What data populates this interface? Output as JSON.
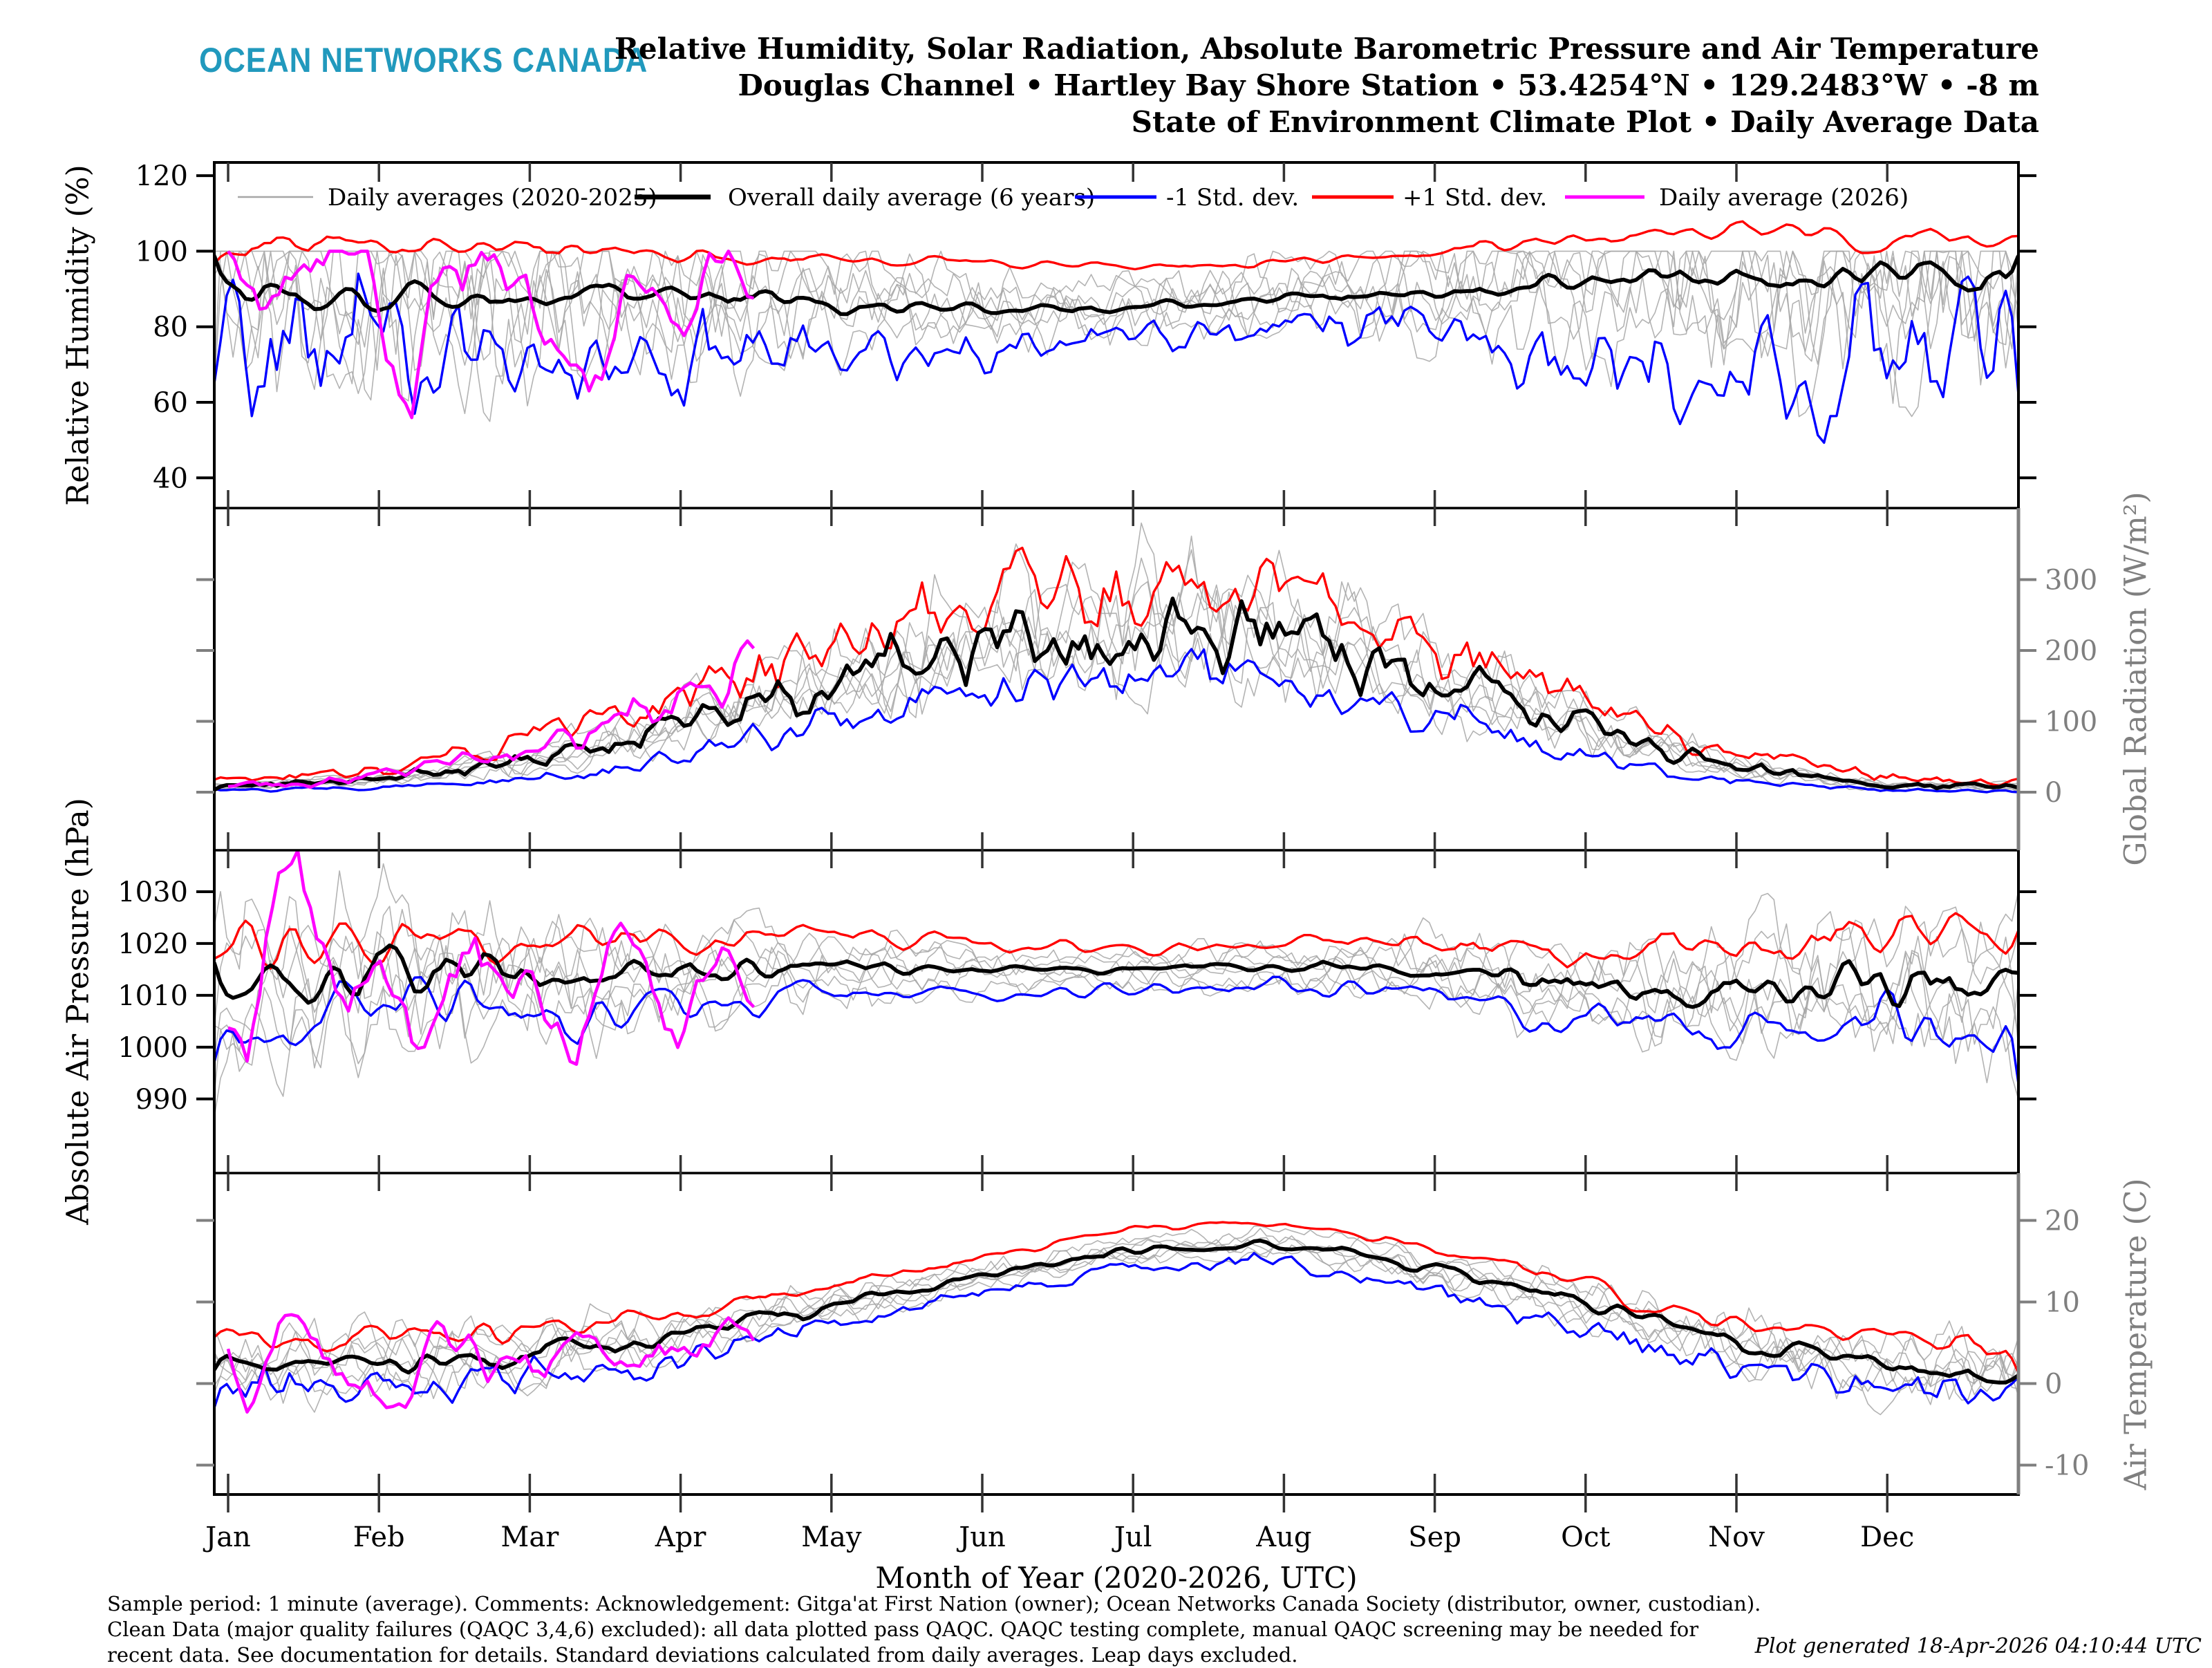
{
  "header": {
    "logo": "OCEAN NETWORKS CANADA",
    "logo_color": "#2199BD",
    "title_lines": [
      "Relative Humidity, Solar Radiation, Absolute Barometric Pressure and Air Temperature",
      "Douglas Channel • Hartley Bay Shore Station • 53.4254°N • 129.2483°W • -8 m",
      "State of Environment Climate Plot • Daily Average Data"
    ]
  },
  "legend": {
    "position": "top",
    "entries": [
      {
        "label": "Daily averages (2020-2025)",
        "color": "#a6a6a6",
        "thick": 2.5
      },
      {
        "label": "Overall daily average (6 years)",
        "color": "#000000",
        "thick": 7
      },
      {
        "label": "-1 Std. dev.",
        "color": "#0000ff",
        "thick": 5
      },
      {
        "label": "+1 Std. dev.",
        "color": "#ff0000",
        "thick": 5
      },
      {
        "label": "Daily average (2026)",
        "color": "#ff00ff",
        "thick": 5
      }
    ]
  },
  "x_axis": {
    "label": "Month of Year (2020-2026, UTC)",
    "months": [
      "Jan",
      "Feb",
      "Mar",
      "Apr",
      "May",
      "Jun",
      "Jul",
      "Aug",
      "Sep",
      "Oct",
      "Nov",
      "Dec"
    ]
  },
  "footer": {
    "notes": "Sample period: 1 minute (average). Comments: Acknowledgement: Gitga'at First Nation (owner); Ocean Networks Canada Society (distributor, owner, custodian). Clean Data (major quality failures (QAQC 3,4,6) excluded): all data plotted pass QAQC. QAQC testing complete, manual QAQC screening may be needed for recent data. See documentation for details. Standard deviations calculated from daily averages. Leap days excluded.",
    "generated": "Plot generated 18-Apr-2026 04:10:44 UTC"
  },
  "chart_data": [
    {
      "type": "line",
      "title": "Relative Humidity",
      "ylabel": "Relative Humidity (%)",
      "axis_side": "left",
      "axis_color": "#000000",
      "ylim": [
        32,
        123.5
      ],
      "yticks": [
        40,
        60,
        80,
        100,
        120
      ],
      "x_unit": "month of year (Jan 1 ... Dec 31)",
      "x_months": [
        0,
        1,
        2,
        3,
        4,
        5,
        6,
        7,
        8,
        9,
        10,
        11,
        12
      ],
      "series": [
        {
          "name": "Overall daily average (6 years)",
          "color": "#000000",
          "values": [
            92,
            88,
            88,
            87,
            86,
            84,
            85,
            87,
            90,
            93,
            92,
            92,
            96
          ]
        },
        {
          "name": "+1 Std. dev.",
          "color": "#ff0000",
          "values": [
            101,
            101,
            100,
            99,
            98,
            97,
            96,
            97,
            100,
            103,
            106,
            104,
            101
          ]
        },
        {
          "name": "-1 Std. dev.",
          "color": "#0000ff",
          "values": [
            79,
            72,
            70,
            70,
            73,
            74,
            77,
            79,
            80,
            73,
            62,
            72,
            88
          ]
        },
        {
          "name": "Daily average (2026)",
          "color": "#ff00ff",
          "x": [
            0,
            0.25,
            0.5,
            0.9,
            1.2,
            1.35,
            1.7,
            2.0,
            2.4,
            2.7,
            3.0,
            3.2,
            3.5
          ],
          "values": [
            100,
            82,
            100,
            100,
            57,
            97,
            100,
            88,
            54,
            95,
            73,
            100,
            89
          ]
        },
        {
          "name": "Daily averages (2020-2025)",
          "color": "#a6a6a6",
          "note": "6 individual year traces scattered about the mean, clipped at 100%"
        }
      ]
    },
    {
      "type": "line",
      "title": "Solar Radiation",
      "ylabel": "Global Radiation (W/m²)",
      "axis_side": "right",
      "axis_color": "#7f7f7f",
      "ylim": [
        -82,
        401
      ],
      "yticks": [
        0,
        100,
        200,
        300
      ],
      "x_unit": "month of year (Jan 1 ... Dec 31)",
      "x_months": [
        0,
        1,
        2,
        3,
        4,
        5,
        6,
        7,
        8,
        9,
        10,
        11,
        12
      ],
      "series": [
        {
          "name": "Overall daily average (6 years)",
          "color": "#000000",
          "values": [
            8,
            18,
            45,
            95,
            150,
            200,
            240,
            220,
            160,
            90,
            35,
            10,
            7
          ]
        },
        {
          "name": "+1 Std. dev.",
          "color": "#ff0000",
          "values": [
            16,
            33,
            75,
            140,
            210,
            270,
            315,
            290,
            215,
            130,
            55,
            20,
            14
          ]
        },
        {
          "name": "-1 Std. dev.",
          "color": "#0000ff",
          "values": [
            2,
            6,
            18,
            52,
            92,
            130,
            165,
            150,
            105,
            50,
            15,
            3,
            1
          ]
        },
        {
          "name": "Daily average (2026)",
          "color": "#ff00ff",
          "x": [
            0,
            0.5,
            1,
            1.5,
            2,
            2.5,
            3,
            3.25,
            3.5
          ],
          "values": [
            8,
            14,
            25,
            45,
            65,
            100,
            140,
            170,
            190
          ]
        },
        {
          "name": "Daily averages (2020-2025)",
          "color": "#a6a6a6",
          "note": "6 individual year traces spanning the ±1 std. dev. envelope"
        }
      ]
    },
    {
      "type": "line",
      "title": "Absolute Barometric Pressure",
      "ylabel": "Absolute Air Pressure (hPa)",
      "axis_side": "left",
      "axis_color": "#000000",
      "ylim": [
        975.7,
        1038
      ],
      "yticks": [
        990,
        1000,
        1010,
        1020,
        1030
      ],
      "x_unit": "month of year (Jan 1 ... Dec 31)",
      "x_months": [
        0,
        1,
        2,
        3,
        4,
        5,
        6,
        7,
        8,
        9,
        10,
        11,
        12
      ],
      "series": [
        {
          "name": "Overall daily average (6 years)",
          "color": "#000000",
          "values": [
            1009,
            1015,
            1013,
            1014,
            1016,
            1015,
            1015,
            1016,
            1015,
            1012,
            1011,
            1013,
            1010
          ]
        },
        {
          "name": "+1 Std. dev.",
          "color": "#ff0000",
          "values": [
            1018,
            1023,
            1021,
            1021,
            1022,
            1020,
            1019,
            1020,
            1020,
            1019,
            1019,
            1021,
            1019
          ]
        },
        {
          "name": "-1 Std. dev.",
          "color": "#0000ff",
          "values": [
            1000,
            1008,
            1005,
            1007,
            1010,
            1010,
            1011,
            1012,
            1010,
            1005,
            1003,
            1005,
            1001
          ]
        },
        {
          "name": "Daily average (2026)",
          "color": "#ff00ff",
          "x": [
            0,
            0.2,
            0.45,
            0.7,
            1.0,
            1.3,
            1.6,
            2.0,
            2.3,
            2.6,
            3.0,
            3.2,
            3.5
          ],
          "values": [
            996,
            1012,
            1036,
            1008,
            1018,
            1000,
            1015,
            1008,
            998,
            1021,
            1005,
            1015,
            1010
          ]
        },
        {
          "name": "Daily averages (2020-2025)",
          "color": "#a6a6a6",
          "note": "6 individual year traces, most variable in winter"
        }
      ]
    },
    {
      "type": "line",
      "title": "Air Temperature",
      "ylabel": "Air Temperature (C)",
      "axis_side": "right",
      "axis_color": "#7f7f7f",
      "ylim": [
        -13.6,
        25.8
      ],
      "yticks": [
        -10,
        0,
        10,
        20
      ],
      "x_unit": "month of year (Jan 1 ... Dec 31)",
      "x_months": [
        0,
        1,
        2,
        3,
        4,
        5,
        6,
        7,
        8,
        9,
        10,
        11,
        12
      ],
      "series": [
        {
          "name": "Overall daily average (6 years)",
          "color": "#000000",
          "values": [
            2.5,
            2.5,
            3.5,
            6,
            9.5,
            13,
            16.5,
            17,
            14,
            9.5,
            5,
            2.5,
            1
          ]
        },
        {
          "name": "+1 Std. dev.",
          "color": "#ff0000",
          "values": [
            5.5,
            5.5,
            6.5,
            8.5,
            12,
            15.5,
            19,
            19.5,
            16.5,
            12,
            7.5,
            5.5,
            4
          ]
        },
        {
          "name": "-1 Std. dev.",
          "color": "#0000ff",
          "values": [
            -1,
            -0.5,
            0.5,
            3.5,
            7,
            11,
            14.5,
            15,
            11.5,
            7,
            2,
            -0.5,
            -3
          ]
        },
        {
          "name": "Daily average (2026)",
          "color": "#ff00ff",
          "x": [
            0,
            0.15,
            0.35,
            0.5,
            0.8,
            1.1,
            1.4,
            1.7,
            2.0,
            2.3,
            2.6,
            3.0,
            3.3,
            3.5
          ],
          "values": [
            1,
            -3.5,
            9.5,
            7,
            0,
            -3,
            6,
            3,
            0.5,
            5,
            1.5,
            4,
            7,
            6.5
          ]
        },
        {
          "name": "Daily averages (2020-2025)",
          "color": "#a6a6a6",
          "note": "6 individual year traces spanning the ±1 std. dev. envelope"
        }
      ]
    }
  ]
}
